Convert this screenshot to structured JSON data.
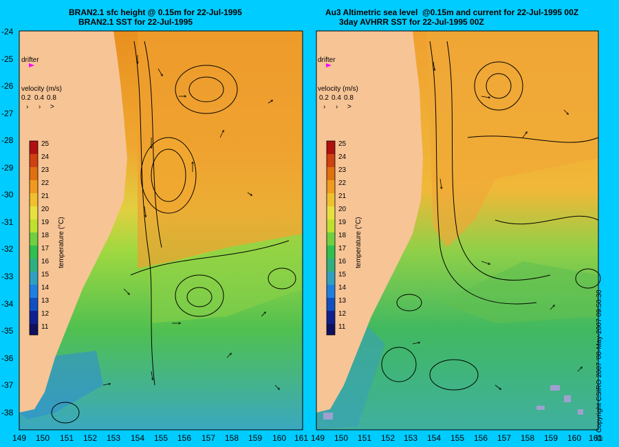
{
  "left_panel": {
    "title_line1": "BRAN2.1 sfc height @ 0.15m for 22-Jul-1995",
    "title_line2": "BRAN2.1 SST for 22-Jul-1995",
    "drifter_label": "drifter",
    "velocity_label": "velocity (m/s)",
    "velocity_scale": [
      "0.2",
      "0.4",
      "0.8"
    ],
    "colorbar_label": "temperature (°C)"
  },
  "right_panel": {
    "title_line1": "Au3 Altimetric sea level  @0.15m and current for 22-Jul-1995 00Z",
    "title_line2": "3day AVHRR SST for 22-Jul-1995 00Z",
    "drifter_label": "drifter",
    "velocity_label": "velocity (m/s)",
    "velocity_scale": [
      "0.2",
      "0.4",
      "0.8"
    ],
    "colorbar_label": "temperature (°C)"
  },
  "colorbar_ticks": [
    "25",
    "24",
    "23",
    "22",
    "21",
    "20",
    "19",
    "18",
    "17",
    "16",
    "15",
    "14",
    "13",
    "12",
    "11"
  ],
  "colorbar_colors": [
    "#b01010",
    "#d04010",
    "#e07010",
    "#f09a20",
    "#f0c030",
    "#e8e040",
    "#c0e030",
    "#70d040",
    "#30c050",
    "#30b080",
    "#30a0c0",
    "#2080e0",
    "#1050c0",
    "#102090",
    "#101060"
  ],
  "lat_labels": [
    "-24",
    "-25",
    "-26",
    "-27",
    "-28",
    "-29",
    "-30",
    "-31",
    "-32",
    "-33",
    "-34",
    "-35",
    "-36",
    "-37",
    "-38"
  ],
  "lon_labels_left": [
    "149",
    "150",
    "151",
    "152",
    "153",
    "154",
    "155",
    "156",
    "157",
    "158",
    "159",
    "160",
    "161"
  ],
  "lon_labels_right": [
    "149",
    "150",
    "151",
    "152",
    "153",
    "154",
    "155",
    "156",
    "157",
    "158",
    "159",
    "160",
    "161"
  ],
  "copyright": "@ Copyright CSIRO 2007 '08-May-2007 09:50:30",
  "colors": {
    "background": "#00ccff",
    "land": "#f7c496",
    "warm": "#f0a030",
    "mid": "#d8e040",
    "cool": "#40c060",
    "drifter": "#ff00ff"
  }
}
